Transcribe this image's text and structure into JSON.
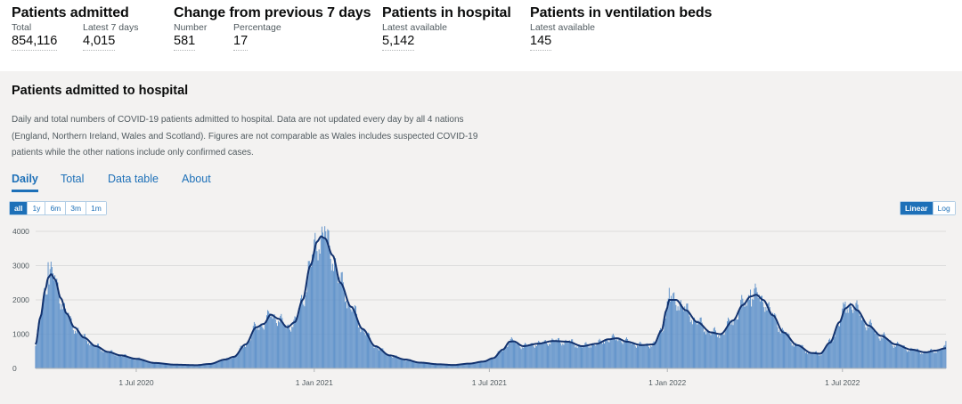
{
  "headlines": [
    {
      "title": "Patients admitted",
      "metrics": [
        {
          "label": "Total",
          "value": "854,116"
        },
        {
          "label": "Latest 7 days",
          "value": "4,015"
        }
      ]
    },
    {
      "title": "Change from previous 7 days",
      "metrics": [
        {
          "label": "Number",
          "value": "581"
        },
        {
          "label": "Percentage",
          "value": "17"
        }
      ]
    },
    {
      "title": "Patients in hospital",
      "metrics": [
        {
          "label": "Latest available",
          "value": "5,142"
        }
      ]
    },
    {
      "title": "Patients in ventilation beds",
      "metrics": [
        {
          "label": "Latest available",
          "value": "145"
        }
      ]
    }
  ],
  "card": {
    "title": "Patients admitted to hospital",
    "description": "Daily and total numbers of COVID-19 patients admitted to hospital. Data are not updated every day by all 4 nations (England, Northern Ireland, Wales and Scotland). Figures are not comparable as Wales includes suspected COVID-19 patients while the other nations include only confirmed cases.",
    "tabs": [
      "Daily",
      "Total",
      "Data table",
      "About"
    ],
    "active_tab": "Daily",
    "range_buttons": [
      "all",
      "1y",
      "6m",
      "3m",
      "1m"
    ],
    "active_range": "all",
    "scale_buttons": [
      "Linear",
      "Log"
    ],
    "active_scale": "Linear"
  },
  "colors": {
    "bar": "#5b8fc9",
    "average_line": "#12326e",
    "accent": "#1d70b8",
    "card_background": "#f3f2f1"
  },
  "chart_data": {
    "type": "bar",
    "x_start": "2020-03-19",
    "x_end": "2022-10-16",
    "ylim": [
      0,
      4000
    ],
    "yticks": [
      0,
      1000,
      2000,
      3000,
      4000
    ],
    "xtick_labels": [
      {
        "date": "2020-07-01",
        "label": "1 Jul 2020"
      },
      {
        "date": "2021-01-01",
        "label": "1 Jan 2021"
      },
      {
        "date": "2021-07-01",
        "label": "1 Jul 2021"
      },
      {
        "date": "2022-01-01",
        "label": "1 Jan 2022"
      },
      {
        "date": "2022-07-01",
        "label": "1 Jul 2022"
      }
    ],
    "grid": "horizontal",
    "series": [
      {
        "kind": "daily_bars",
        "name": "",
        "description": "Daily patients admitted"
      },
      {
        "kind": "7_day_average_line",
        "name": "",
        "description": "Rolling 7-day average"
      }
    ],
    "average_keypoints": [
      [
        "2020-03-19",
        700
      ],
      [
        "2020-03-24",
        1500
      ],
      [
        "2020-03-29",
        2300
      ],
      [
        "2020-04-01",
        2650
      ],
      [
        "2020-04-04",
        2750
      ],
      [
        "2020-04-08",
        2600
      ],
      [
        "2020-04-14",
        2050
      ],
      [
        "2020-04-20",
        1600
      ],
      [
        "2020-04-28",
        1200
      ],
      [
        "2020-05-08",
        900
      ],
      [
        "2020-05-20",
        650
      ],
      [
        "2020-06-02",
        480
      ],
      [
        "2020-06-15",
        380
      ],
      [
        "2020-07-01",
        280
      ],
      [
        "2020-07-20",
        160
      ],
      [
        "2020-08-10",
        110
      ],
      [
        "2020-09-01",
        95
      ],
      [
        "2020-09-15",
        130
      ],
      [
        "2020-10-01",
        260
      ],
      [
        "2020-10-10",
        340
      ],
      [
        "2020-10-22",
        700
      ],
      [
        "2020-11-02",
        1200
      ],
      [
        "2020-11-10",
        1300
      ],
      [
        "2020-11-17",
        1570
      ],
      [
        "2020-11-25",
        1450
      ],
      [
        "2020-12-04",
        1200
      ],
      [
        "2020-12-12",
        1350
      ],
      [
        "2020-12-20",
        2000
      ],
      [
        "2020-12-28",
        3000
      ],
      [
        "2021-01-04",
        3700
      ],
      [
        "2021-01-08",
        3850
      ],
      [
        "2021-01-12",
        3800
      ],
      [
        "2021-01-20",
        3300
      ],
      [
        "2021-01-28",
        2500
      ],
      [
        "2021-02-08",
        1800
      ],
      [
        "2021-02-20",
        1150
      ],
      [
        "2021-03-05",
        650
      ],
      [
        "2021-03-20",
        380
      ],
      [
        "2021-04-05",
        260
      ],
      [
        "2021-04-20",
        170
      ],
      [
        "2021-05-10",
        120
      ],
      [
        "2021-05-25",
        100
      ],
      [
        "2021-06-10",
        140
      ],
      [
        "2021-06-25",
        200
      ],
      [
        "2021-07-05",
        300
      ],
      [
        "2021-07-15",
        550
      ],
      [
        "2021-07-22",
        780
      ],
      [
        "2021-07-26",
        790
      ],
      [
        "2021-08-05",
        650
      ],
      [
        "2021-08-20",
        720
      ],
      [
        "2021-09-05",
        800
      ],
      [
        "2021-09-20",
        780
      ],
      [
        "2021-10-05",
        650
      ],
      [
        "2021-10-20",
        720
      ],
      [
        "2021-11-01",
        850
      ],
      [
        "2021-11-10",
        880
      ],
      [
        "2021-11-20",
        780
      ],
      [
        "2021-12-05",
        680
      ],
      [
        "2021-12-18",
        700
      ],
      [
        "2021-12-26",
        1100
      ],
      [
        "2021-12-31",
        1700
      ],
      [
        "2022-01-03",
        2000
      ],
      [
        "2022-01-10",
        2000
      ],
      [
        "2022-01-20",
        1700
      ],
      [
        "2022-02-01",
        1350
      ],
      [
        "2022-02-15",
        1050
      ],
      [
        "2022-02-25",
        1000
      ],
      [
        "2022-03-10",
        1400
      ],
      [
        "2022-03-20",
        1850
      ],
      [
        "2022-03-28",
        2100
      ],
      [
        "2022-04-03",
        2150
      ],
      [
        "2022-04-10",
        2000
      ],
      [
        "2022-04-20",
        1550
      ],
      [
        "2022-05-01",
        1050
      ],
      [
        "2022-05-15",
        680
      ],
      [
        "2022-05-30",
        450
      ],
      [
        "2022-06-08",
        430
      ],
      [
        "2022-06-18",
        750
      ],
      [
        "2022-06-28",
        1350
      ],
      [
        "2022-07-04",
        1750
      ],
      [
        "2022-07-10",
        1870
      ],
      [
        "2022-07-16",
        1700
      ],
      [
        "2022-07-28",
        1250
      ],
      [
        "2022-08-10",
        950
      ],
      [
        "2022-08-25",
        700
      ],
      [
        "2022-09-10",
        550
      ],
      [
        "2022-09-25",
        470
      ],
      [
        "2022-10-05",
        520
      ],
      [
        "2022-10-16",
        590
      ]
    ],
    "daily_peaks": [
      [
        "2020-04-01",
        3100
      ],
      [
        "2021-01-12",
        4150
      ],
      [
        "2022-01-03",
        2350
      ],
      [
        "2022-03-28",
        2300
      ],
      [
        "2022-07-04",
        1950
      ],
      [
        "2022-10-16",
        800
      ]
    ]
  }
}
